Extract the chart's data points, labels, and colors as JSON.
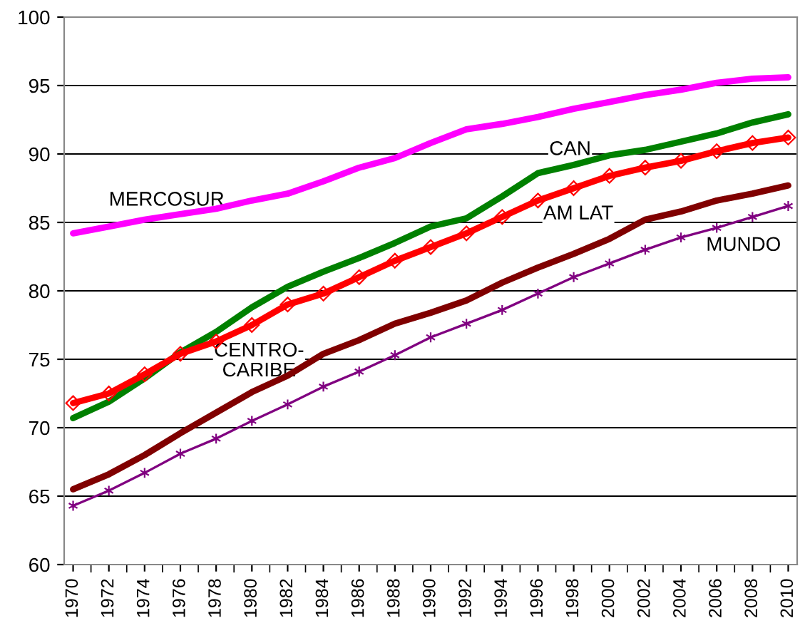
{
  "chart_data": {
    "type": "line",
    "x": [
      1970,
      1972,
      1974,
      1976,
      1978,
      1980,
      1982,
      1984,
      1986,
      1988,
      1990,
      1992,
      1994,
      1996,
      1998,
      2000,
      2002,
      2004,
      2006,
      2008,
      2010
    ],
    "series": [
      {
        "name": "MERCOSUR",
        "color": "#ff00ff",
        "marker": "none",
        "values": [
          84.2,
          84.7,
          85.2,
          85.6,
          86.0,
          86.6,
          87.1,
          88.0,
          89.0,
          89.7,
          90.8,
          91.8,
          92.2,
          92.7,
          93.3,
          93.8,
          94.3,
          94.7,
          95.2,
          95.5,
          95.6
        ]
      },
      {
        "name": "CAN",
        "color": "#008000",
        "marker": "none",
        "values": [
          70.7,
          71.9,
          73.6,
          75.5,
          77.0,
          78.8,
          80.3,
          81.4,
          82.4,
          83.5,
          84.7,
          85.3,
          86.9,
          88.6,
          89.2,
          89.9,
          90.3,
          90.9,
          91.5,
          92.3,
          92.9
        ]
      },
      {
        "name": "AM LAT",
        "color": "#ff0000",
        "marker": "diamond",
        "values": [
          71.8,
          72.5,
          73.9,
          75.4,
          76.3,
          77.5,
          79.0,
          79.8,
          81.0,
          82.2,
          83.2,
          84.2,
          85.4,
          86.6,
          87.5,
          88.4,
          89.0,
          89.5,
          90.2,
          90.8,
          91.2
        ]
      },
      {
        "name": "CENTRO-CARIBE",
        "color": "#800000",
        "marker": "none",
        "values": [
          65.5,
          66.6,
          68.0,
          69.6,
          71.1,
          72.6,
          73.8,
          75.4,
          76.4,
          77.6,
          78.4,
          79.3,
          80.6,
          81.7,
          82.7,
          83.8,
          85.2,
          85.8,
          86.6,
          87.1,
          87.7
        ]
      },
      {
        "name": "MUNDO",
        "color": "#800080",
        "marker": "cross",
        "values": [
          64.3,
          65.4,
          66.7,
          68.1,
          69.2,
          70.5,
          71.7,
          73.0,
          74.1,
          75.3,
          76.6,
          77.6,
          78.6,
          79.8,
          81.0,
          82.0,
          83.0,
          83.9,
          84.6,
          85.4,
          86.2
        ]
      }
    ],
    "xlim": [
      1969.5,
      2010.5
    ],
    "ylim": [
      60,
      100
    ],
    "xticks": [
      1970,
      1972,
      1974,
      1976,
      1978,
      1980,
      1982,
      1984,
      1986,
      1988,
      1990,
      1992,
      1994,
      1996,
      1998,
      2000,
      2002,
      2004,
      2006,
      2008,
      2010
    ],
    "yticks": [
      60,
      65,
      70,
      75,
      80,
      85,
      90,
      95,
      100
    ],
    "grid": "y",
    "legend": false
  }
}
